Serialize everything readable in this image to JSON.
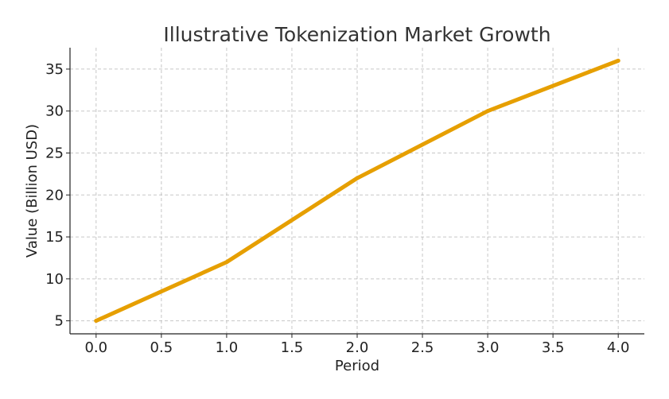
{
  "chart_data": {
    "type": "line",
    "title": "Illustrative Tokenization Market Growth",
    "xlabel": "Period",
    "ylabel": "Value (Billion USD)",
    "xlim": [
      -0.2,
      4.2
    ],
    "ylim": [
      3.45,
      37.55
    ],
    "x_ticks": [
      0.0,
      0.5,
      1.0,
      1.5,
      2.0,
      2.5,
      3.0,
      3.5,
      4.0
    ],
    "x_tick_labels": [
      "0.0",
      "0.5",
      "1.0",
      "1.5",
      "2.0",
      "2.5",
      "3.0",
      "3.5",
      "4.0"
    ],
    "y_ticks": [
      5,
      10,
      15,
      20,
      25,
      30,
      35
    ],
    "y_tick_labels": [
      "5",
      "10",
      "15",
      "20",
      "25",
      "30",
      "35"
    ],
    "grid": true,
    "series": [
      {
        "x": [
          0,
          1,
          2,
          3,
          4
        ],
        "values": [
          5,
          12,
          22,
          30,
          36
        ],
        "color": "#E69F00"
      }
    ]
  }
}
